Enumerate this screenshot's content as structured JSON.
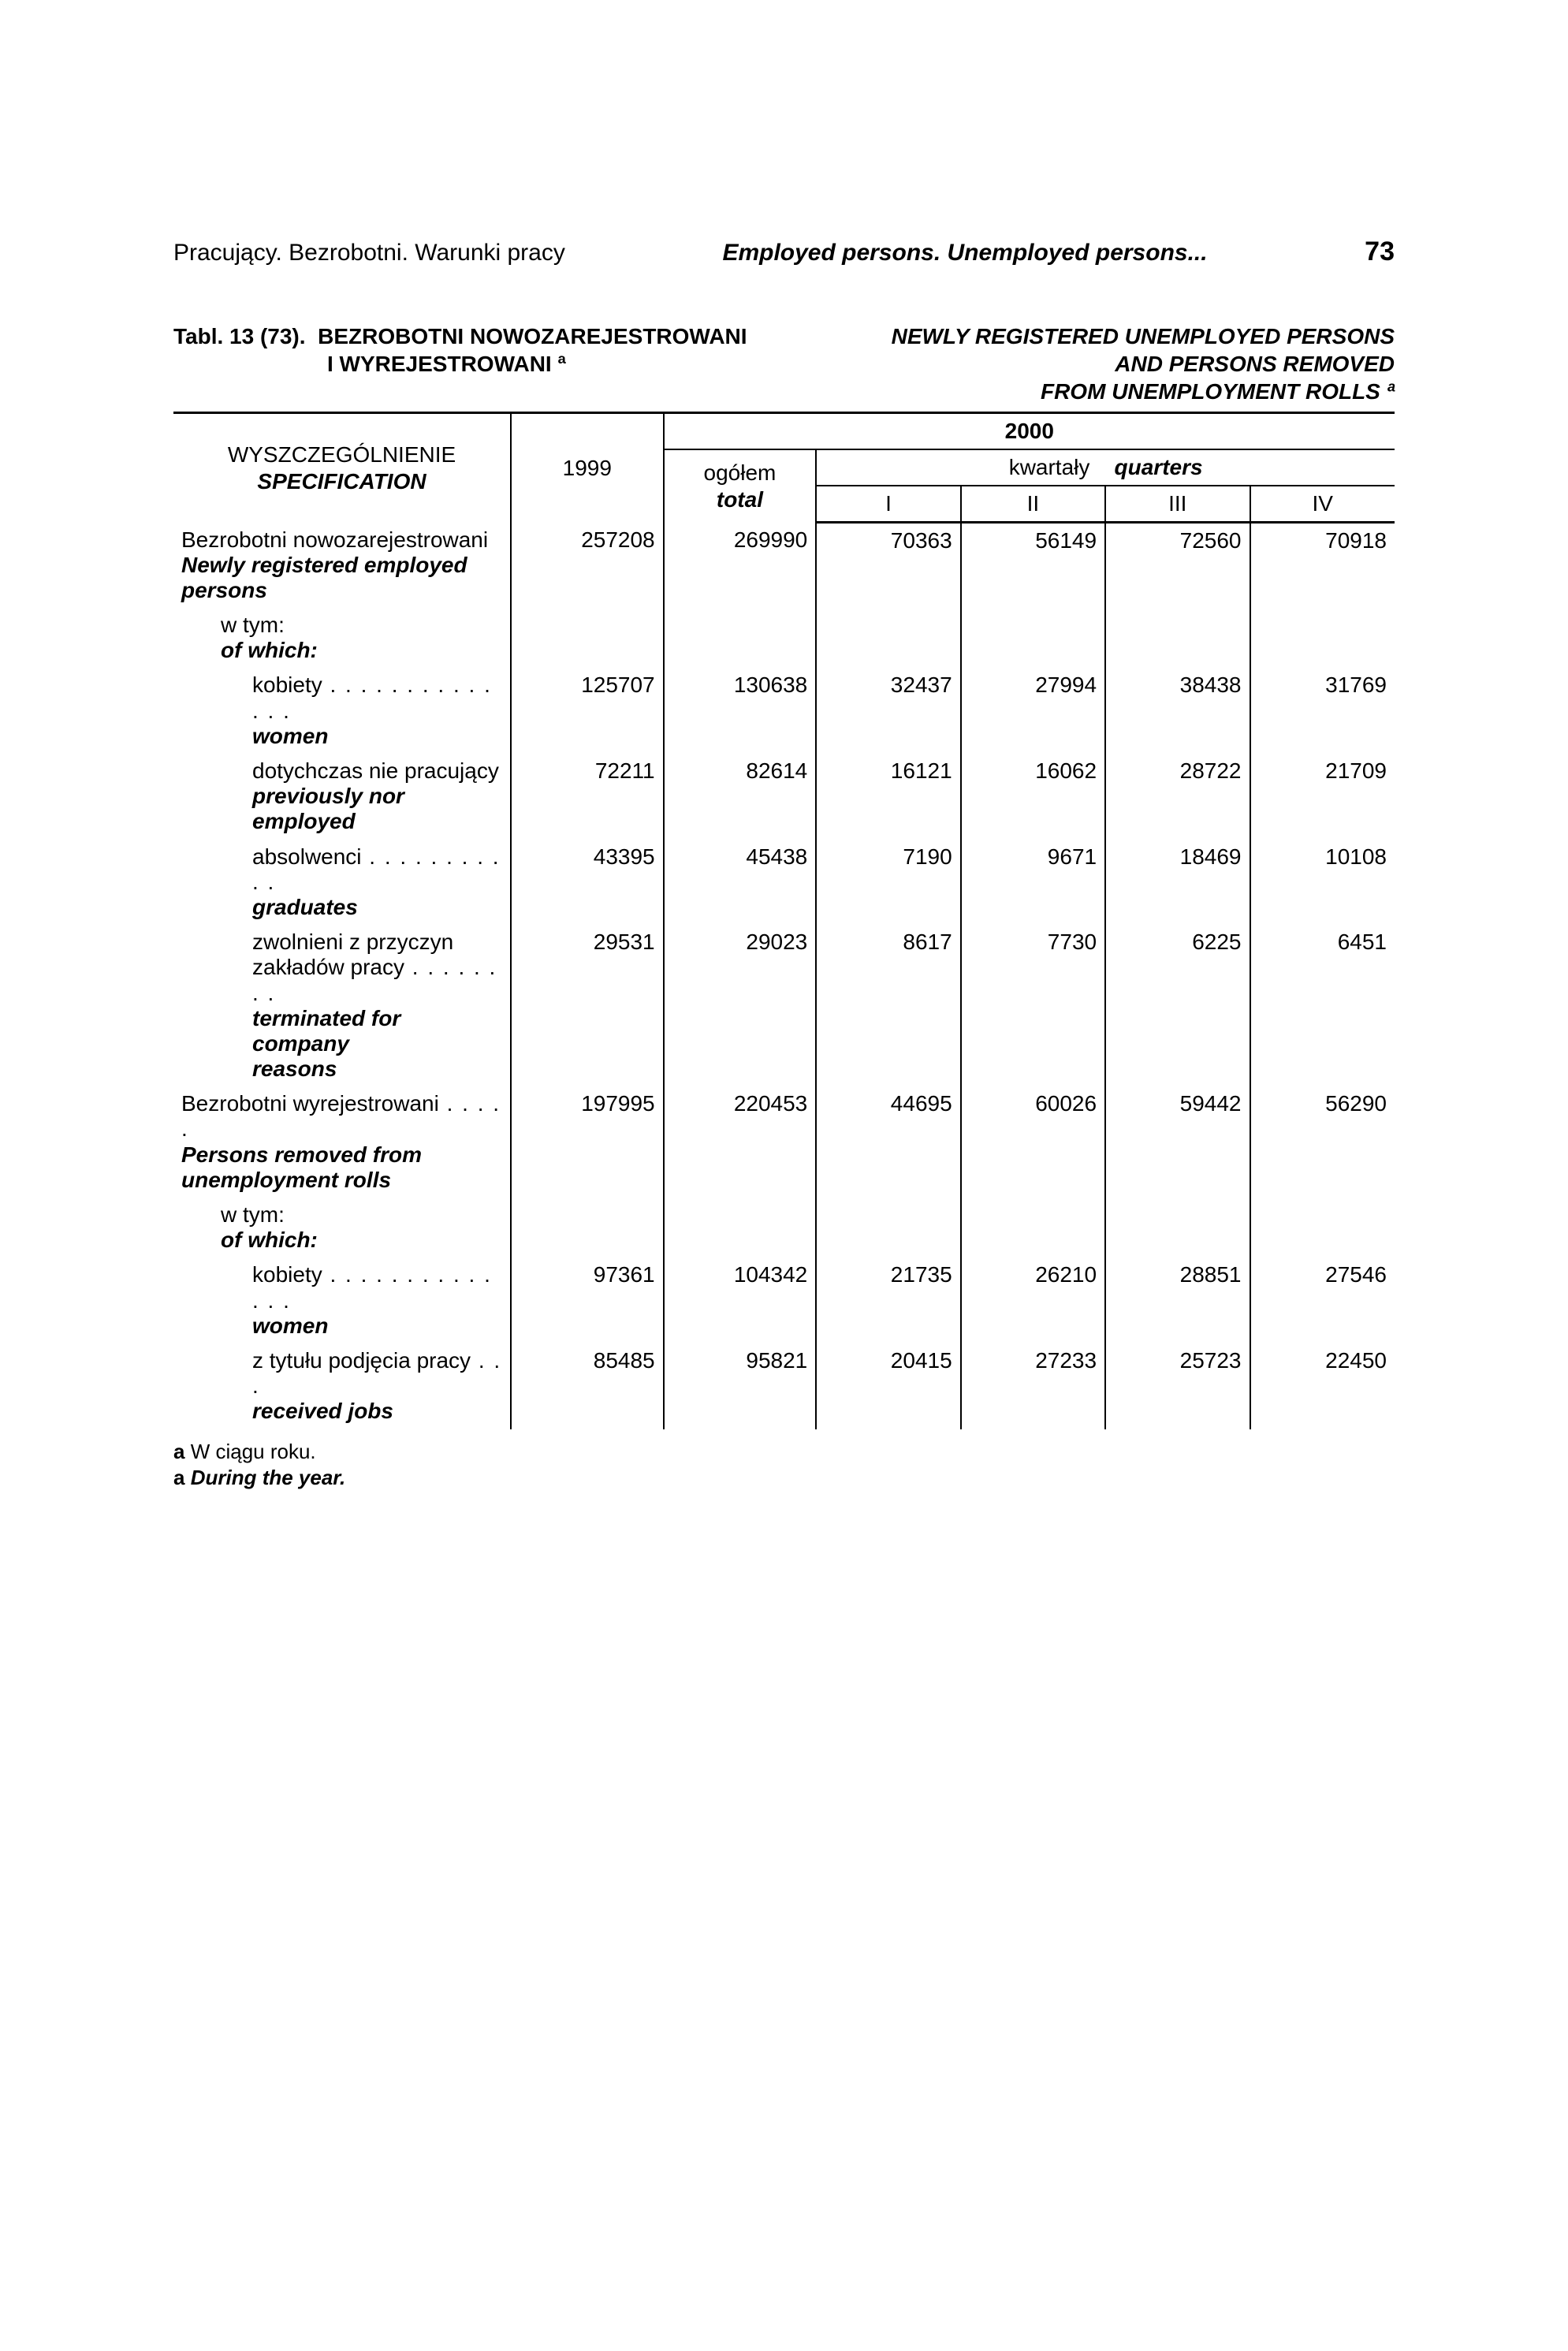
{
  "header": {
    "left": "Pracujący. Bezrobotni. Warunki pracy",
    "mid": "Employed persons. Unemployed persons...",
    "page": "73"
  },
  "title": {
    "left_line1": "Tabl. 13 (73).  BEZROBOTNI NOWOZAREJESTROWANI",
    "left_line2": "I WYREJESTROWANI ª",
    "right_line1": "NEWLY REGISTERED UNEMPLOYED PERSONS",
    "right_line2": "AND PERSONS REMOVED",
    "right_line3": "FROM UNEMPLOYMENT ROLLS ª"
  },
  "thead": {
    "spec_pl": "WYSZCZEGÓLNIENIE",
    "spec_en": "SPECIFICATION",
    "year": "1999",
    "year2000": "2000",
    "total_pl": "ogółem",
    "total_en": "total",
    "quarters_pl": "kwartały",
    "quarters_en": "quarters",
    "q1": "I",
    "q2": "II",
    "q3": "III",
    "q4": "IV"
  },
  "rows": [
    {
      "pl": "Bezrobotni nowozarejestrowani",
      "en_line1": "Newly registered employed",
      "en_line2": "persons",
      "indent": 0,
      "vals": [
        "257208",
        "269990",
        "70363",
        "56149",
        "72560",
        "70918"
      ]
    },
    {
      "pl": "w tym:",
      "en_line1": "of which:",
      "indent": 1,
      "vals": [
        "",
        "",
        "",
        "",
        "",
        ""
      ]
    },
    {
      "pl": "kobiety",
      "en_line1": "women",
      "indent": 2,
      "dots": "dots",
      "vals": [
        "125707",
        "130638",
        "32437",
        "27994",
        "38438",
        "31769"
      ]
    },
    {
      "pl": "dotychczas nie pracujący",
      "en_line1": "previously nor employed",
      "indent": 2,
      "vals": [
        "72211",
        "82614",
        "16121",
        "16062",
        "28722",
        "21709"
      ]
    },
    {
      "pl": "absolwenci",
      "en_line1": "graduates",
      "indent": 2,
      "dots": "dots-short",
      "vals": [
        "43395",
        "45438",
        "7190",
        "9671",
        "18469",
        "10108"
      ]
    },
    {
      "pl": "zwolnieni z przyczyn",
      "pl_line2": "zakładów pracy",
      "en_line1": "terminated for company",
      "en_line2": "reasons",
      "indent": 2,
      "dots": "dots-mid",
      "dots_on_line2": true,
      "vals": [
        "29531",
        "29023",
        "8617",
        "7730",
        "6225",
        "6451"
      ]
    },
    {
      "pl": "Bezrobotni wyrejestrowani",
      "en_line1": "Persons removed from",
      "en_line2": "unemployment rolls",
      "indent": 0,
      "dots": "dots-med",
      "vals": [
        "197995",
        "220453",
        "44695",
        "60026",
        "59442",
        "56290"
      ]
    },
    {
      "pl": "w tym:",
      "en_line1": "of which:",
      "indent": 1,
      "vals": [
        "",
        "",
        "",
        "",
        "",
        ""
      ]
    },
    {
      "pl": "kobiety",
      "en_line1": "women",
      "indent": 2,
      "dots": "dots",
      "vals": [
        "97361",
        "104342",
        "21735",
        "26210",
        "28851",
        "27546"
      ]
    },
    {
      "pl": "z tytułu podjęcia pracy",
      "en_line1": "received jobs",
      "indent": 2,
      "dots": "dots-tiny",
      "vals": [
        "85485",
        "95821",
        "20415",
        "27233",
        "25723",
        "22450"
      ]
    }
  ],
  "footnote": {
    "mark": "a",
    "pl": "W ciągu roku.",
    "en": "During the year."
  }
}
